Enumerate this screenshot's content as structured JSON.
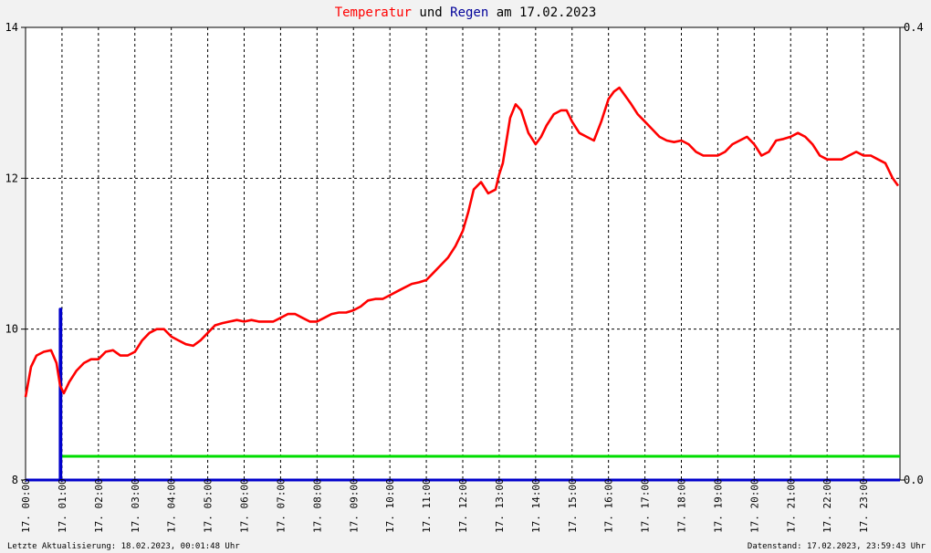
{
  "chart_data": {
    "type": "line",
    "title": {
      "part1": "Temperatur",
      "part2": " und ",
      "part3": "Regen",
      "part4": " am 17.02.2023"
    },
    "colors": {
      "temperature": "#ff0000",
      "rain": "#0000cc",
      "rain_sum": "#00dd00",
      "title_temperature": "#ff0000",
      "title_rain": "#000099",
      "title_text": "#000000",
      "grid": "#000000",
      "background": "#ffffff"
    },
    "y_left": {
      "min": 8,
      "max": 14,
      "ticks": [
        8,
        10,
        12,
        14
      ],
      "tick_labels": [
        "8",
        "10",
        "12",
        "14"
      ]
    },
    "y_right": {
      "min": 0.0,
      "max": 0.4,
      "ticks": [
        0.0,
        0.4
      ],
      "tick_labels": [
        "0.0",
        "0.4"
      ]
    },
    "x": {
      "min": 0,
      "max": 24,
      "unit": "hours"
    },
    "x_tick_labels": [
      "17. 00:00",
      "17. 01:00",
      "17. 02:00",
      "17. 03:00",
      "17. 04:00",
      "17. 05:00",
      "17. 06:00",
      "17. 07:00",
      "17. 08:00",
      "17. 09:00",
      "17. 10:00",
      "17. 11:00",
      "17. 12:00",
      "17. 13:00",
      "17. 14:00",
      "17. 15:00",
      "17. 16:00",
      "17. 17:00",
      "17. 18:00",
      "17. 19:00",
      "17. 20:00",
      "17. 21:00",
      "17. 22:00",
      "17. 23:00"
    ],
    "grid": true,
    "series": [
      {
        "name": "Temperatur",
        "axis": "left",
        "x": [
          0.0,
          0.15,
          0.3,
          0.5,
          0.7,
          0.85,
          0.95,
          1.05,
          1.2,
          1.4,
          1.6,
          1.8,
          2.0,
          2.2,
          2.4,
          2.6,
          2.8,
          3.0,
          3.2,
          3.4,
          3.6,
          3.8,
          4.0,
          4.2,
          4.4,
          4.6,
          4.8,
          5.0,
          5.2,
          5.4,
          5.6,
          5.8,
          6.0,
          6.2,
          6.4,
          6.6,
          6.8,
          7.0,
          7.2,
          7.4,
          7.6,
          7.8,
          8.0,
          8.2,
          8.4,
          8.6,
          8.8,
          9.0,
          9.2,
          9.4,
          9.6,
          9.8,
          10.0,
          10.2,
          10.4,
          10.6,
          10.8,
          11.0,
          11.2,
          11.4,
          11.6,
          11.8,
          12.0,
          12.15,
          12.3,
          12.5,
          12.7,
          12.9,
          13.0,
          13.1,
          13.2,
          13.3,
          13.45,
          13.6,
          13.8,
          14.0,
          14.15,
          14.3,
          14.5,
          14.7,
          14.85,
          15.0,
          15.2,
          15.4,
          15.6,
          15.8,
          16.0,
          16.15,
          16.3,
          16.45,
          16.6,
          16.8,
          17.0,
          17.2,
          17.4,
          17.6,
          17.8,
          18.0,
          18.2,
          18.4,
          18.6,
          18.8,
          19.0,
          19.2,
          19.4,
          19.6,
          19.8,
          20.0,
          20.2,
          20.4,
          20.6,
          20.8,
          21.0,
          21.2,
          21.4,
          21.6,
          21.8,
          22.0,
          22.2,
          22.4,
          22.6,
          22.8,
          23.0,
          23.2,
          23.4,
          23.6,
          23.8,
          23.95
        ],
        "values": [
          9.1,
          9.5,
          9.65,
          9.7,
          9.72,
          9.55,
          9.25,
          9.15,
          9.3,
          9.45,
          9.55,
          9.6,
          9.6,
          9.7,
          9.72,
          9.65,
          9.65,
          9.7,
          9.85,
          9.95,
          10.0,
          10.0,
          9.9,
          9.85,
          9.8,
          9.78,
          9.85,
          9.95,
          10.05,
          10.08,
          10.1,
          10.12,
          10.1,
          10.12,
          10.1,
          10.1,
          10.1,
          10.15,
          10.2,
          10.2,
          10.15,
          10.1,
          10.1,
          10.15,
          10.2,
          10.22,
          10.22,
          10.25,
          10.3,
          10.38,
          10.4,
          10.4,
          10.45,
          10.5,
          10.55,
          10.6,
          10.62,
          10.65,
          10.75,
          10.85,
          10.95,
          11.1,
          11.3,
          11.55,
          11.85,
          11.95,
          11.8,
          11.85,
          12.05,
          12.2,
          12.5,
          12.8,
          12.98,
          12.9,
          12.6,
          12.45,
          12.55,
          12.7,
          12.85,
          12.9,
          12.9,
          12.75,
          12.6,
          12.55,
          12.5,
          12.75,
          13.05,
          13.15,
          13.2,
          13.1,
          13.0,
          12.85,
          12.75,
          12.65,
          12.55,
          12.5,
          12.48,
          12.5,
          12.45,
          12.35,
          12.3,
          12.3,
          12.3,
          12.35,
          12.45,
          12.5,
          12.55,
          12.45,
          12.3,
          12.35,
          12.5,
          12.52,
          12.55,
          12.6,
          12.55,
          12.45,
          12.3,
          12.25,
          12.25,
          12.25,
          12.3,
          12.35,
          12.3,
          12.3,
          12.25,
          12.2,
          12.0,
          11.9
        ]
      },
      {
        "name": "Regen",
        "axis": "right",
        "x": [
          0.0,
          0.95,
          0.95,
          0.97,
          0.97,
          24.0
        ],
        "values": [
          0.0,
          0.0,
          0.151,
          0.151,
          0.0,
          0.0
        ]
      },
      {
        "name": "Regensumme",
        "axis": "right",
        "x": [
          0.97,
          24.0
        ],
        "values": [
          0.021,
          0.021
        ]
      }
    ]
  },
  "footer": {
    "last_update": "Letzte Aktualisierung: 18.02.2023, 00:01:48 Uhr",
    "data_status": "Datenstand: 17.02.2023, 23:59:43 Uhr"
  }
}
